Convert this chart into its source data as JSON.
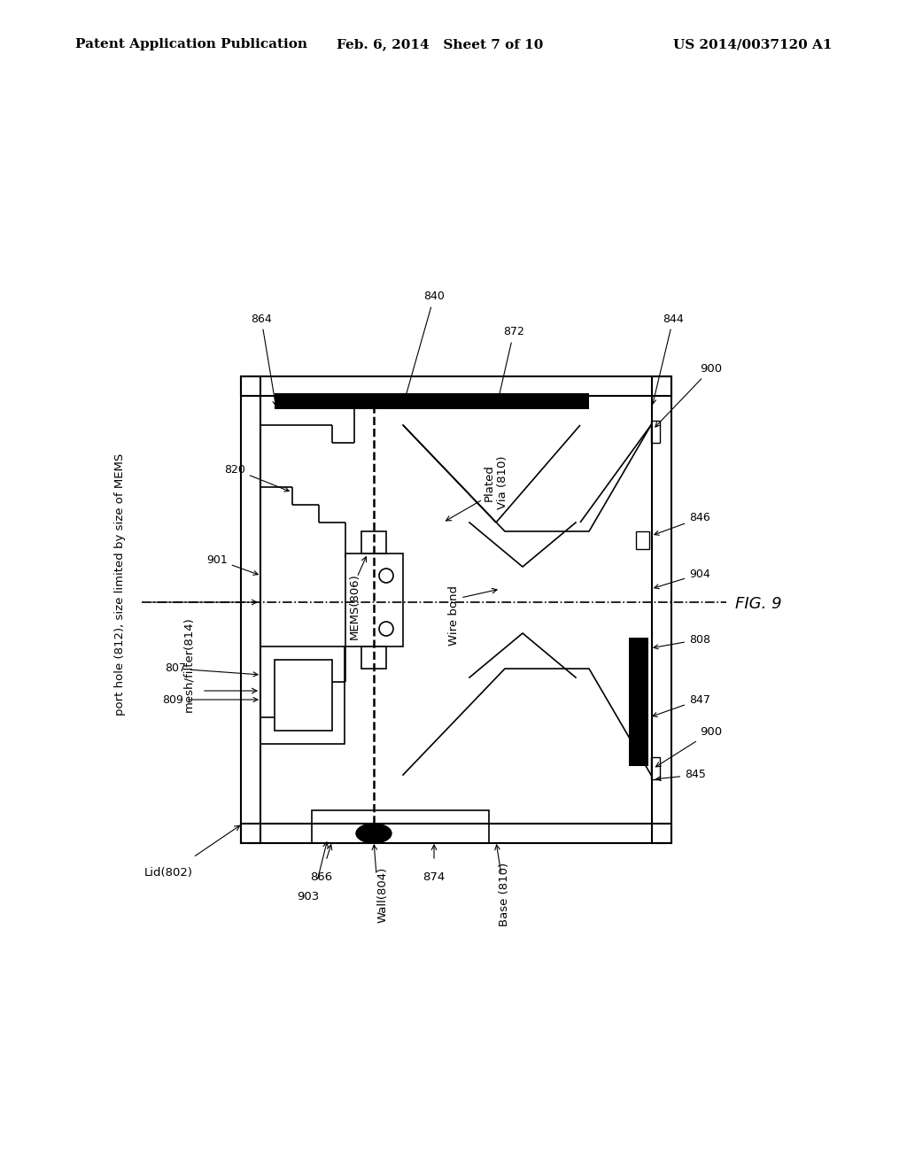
{
  "title_left": "Patent Application Publication",
  "title_mid": "Feb. 6, 2014   Sheet 7 of 10",
  "title_right": "US 2014/0037120 A1",
  "fig_label": "FIG. 9",
  "background": "#ffffff"
}
